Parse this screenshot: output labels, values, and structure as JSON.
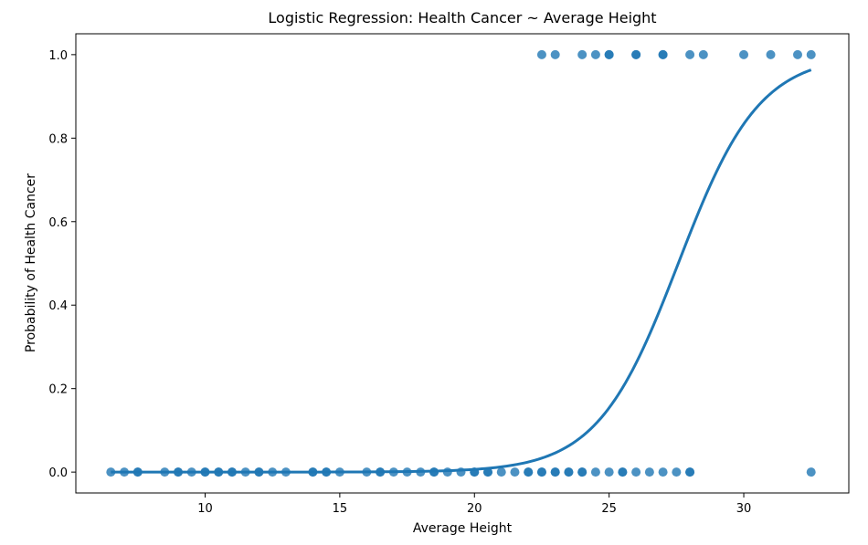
{
  "chart_data": {
    "type": "scatter",
    "title": "Logistic Regression: Health Cancer ~ Average Height",
    "xlabel": "Average Height",
    "ylabel": "Probability of Health Cancer",
    "xlim": [
      5.2,
      33.9
    ],
    "ylim": [
      -0.05,
      1.05
    ],
    "xticks": [
      10,
      15,
      20,
      25,
      30
    ],
    "yticks": [
      0.0,
      0.2,
      0.4,
      0.6,
      0.8,
      1.0
    ],
    "xtick_labels": [
      "10",
      "15",
      "20",
      "25",
      "30"
    ],
    "ytick_labels": [
      "0.0",
      "0.2",
      "0.4",
      "0.6",
      "0.8",
      "1.0"
    ],
    "grid": false,
    "point_color": "#1f77b4",
    "line_color": "#1f77b4",
    "series": [
      {
        "kind": "points",
        "x": [
          6.5,
          7.0,
          7.5,
          7.5,
          8.5,
          9.0,
          9.0,
          9.5,
          10.0,
          10.0,
          10.5,
          10.5,
          11.0,
          11.0,
          11.5,
          12.0,
          12.0,
          12.5,
          13.0,
          14.0,
          14.0,
          14.5,
          14.5,
          15.0,
          16.0,
          16.5,
          16.5,
          17.0,
          17.5,
          18.0,
          18.5,
          18.5,
          19.0,
          19.5,
          20.0,
          20.0,
          20.5,
          20.5,
          21.0,
          21.5,
          22.0,
          22.0,
          22.5,
          22.5,
          23.0,
          23.0,
          23.5,
          23.5,
          24.0,
          24.0,
          24.5,
          25.0,
          25.5,
          25.5,
          26.0,
          26.5,
          27.0,
          27.5,
          28.0,
          28.0,
          32.5,
          22.5,
          23.0,
          24.0,
          24.5,
          25.0,
          25.0,
          26.0,
          26.0,
          27.0,
          27.0,
          28.0,
          28.5,
          30.0,
          31.0,
          32.0,
          32.5
        ],
        "y": [
          0,
          0,
          0,
          0,
          0,
          0,
          0,
          0,
          0,
          0,
          0,
          0,
          0,
          0,
          0,
          0,
          0,
          0,
          0,
          0,
          0,
          0,
          0,
          0,
          0,
          0,
          0,
          0,
          0,
          0,
          0,
          0,
          0,
          0,
          0,
          0,
          0,
          0,
          0,
          0,
          0,
          0,
          0,
          0,
          0,
          0,
          0,
          0,
          0,
          0,
          0,
          0,
          0,
          0,
          0,
          0,
          0,
          0,
          0,
          0,
          0,
          1,
          1,
          1,
          1,
          1,
          1,
          1,
          1,
          1,
          1,
          1,
          1,
          1,
          1,
          1,
          1
        ]
      },
      {
        "kind": "logistic-curve",
        "x_range": [
          6.5,
          32.5
        ],
        "intercept": -18.3,
        "coef": 0.6638
      }
    ]
  }
}
